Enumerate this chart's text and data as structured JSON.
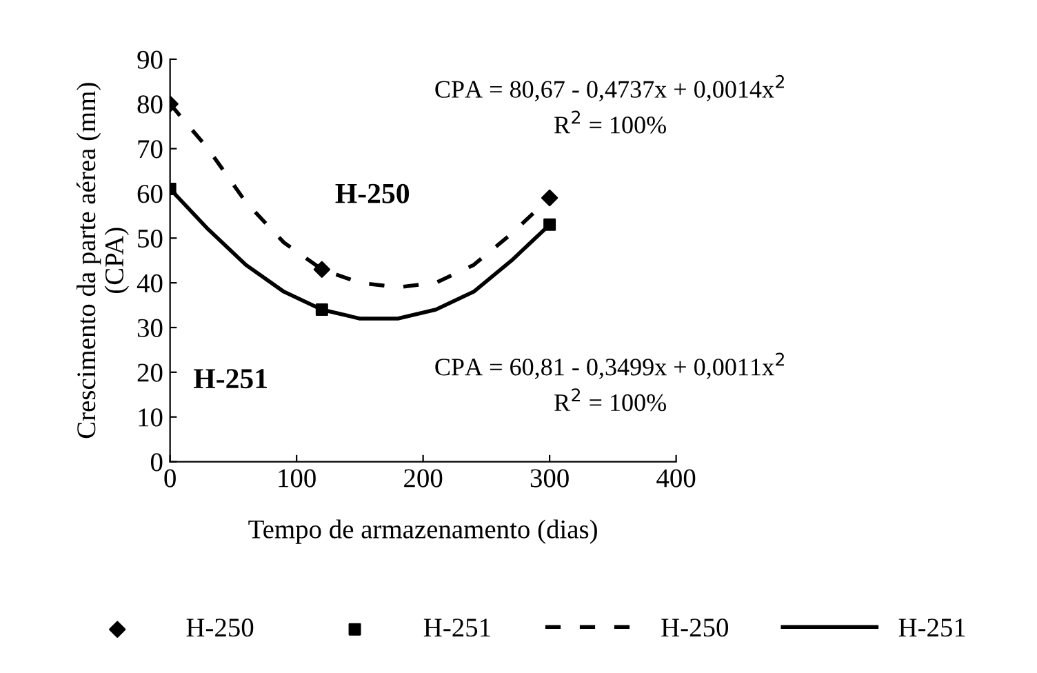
{
  "chart_data": {
    "type": "scatter",
    "xlabel": "Tempo de armazenamento (dias)",
    "ylabel": "Crescimento da parte aérea (mm)\n(CPA)",
    "xlim": [
      0,
      400
    ],
    "xticks": [
      0,
      100,
      200,
      300,
      400
    ],
    "ylim": [
      0,
      90
    ],
    "yticks": [
      0,
      10,
      20,
      30,
      40,
      50,
      60,
      70,
      80,
      90
    ],
    "grid": false,
    "legend": "bottom",
    "series": [
      {
        "name": "H-250",
        "marker": "diamond",
        "color": "#000000",
        "x": [
          0,
          120,
          300
        ],
        "values": [
          80,
          43,
          59
        ]
      },
      {
        "name": "H-251",
        "marker": "square",
        "color": "#000000",
        "x": [
          0,
          120,
          300
        ],
        "values": [
          61,
          34,
          53
        ]
      },
      {
        "name": "H-250",
        "type": "line",
        "line_style": "dashed",
        "color": "#000000",
        "x": [
          0,
          30,
          60,
          90,
          120,
          150,
          180,
          210,
          240,
          270,
          300
        ],
        "values": [
          80,
          70,
          58,
          49,
          43,
          40,
          39,
          40,
          44,
          51,
          59
        ]
      },
      {
        "name": "H-251",
        "type": "line",
        "line_style": "solid",
        "color": "#000000",
        "x": [
          0,
          30,
          60,
          90,
          120,
          150,
          180,
          210,
          240,
          270,
          300
        ],
        "values": [
          61,
          52,
          44,
          38,
          34,
          32,
          32,
          34,
          38,
          45,
          53
        ]
      }
    ],
    "annotations": [
      "CPA = 80,67 - 0,4737x + 0,0014x$^{2}$\nR$^{2}$ = 100%",
      "H-250",
      "H-251",
      "CPA = 60,81 - 0,3499x + 0,0011x$^{2}$\nR$^{2}$ = 100%"
    ]
  }
}
